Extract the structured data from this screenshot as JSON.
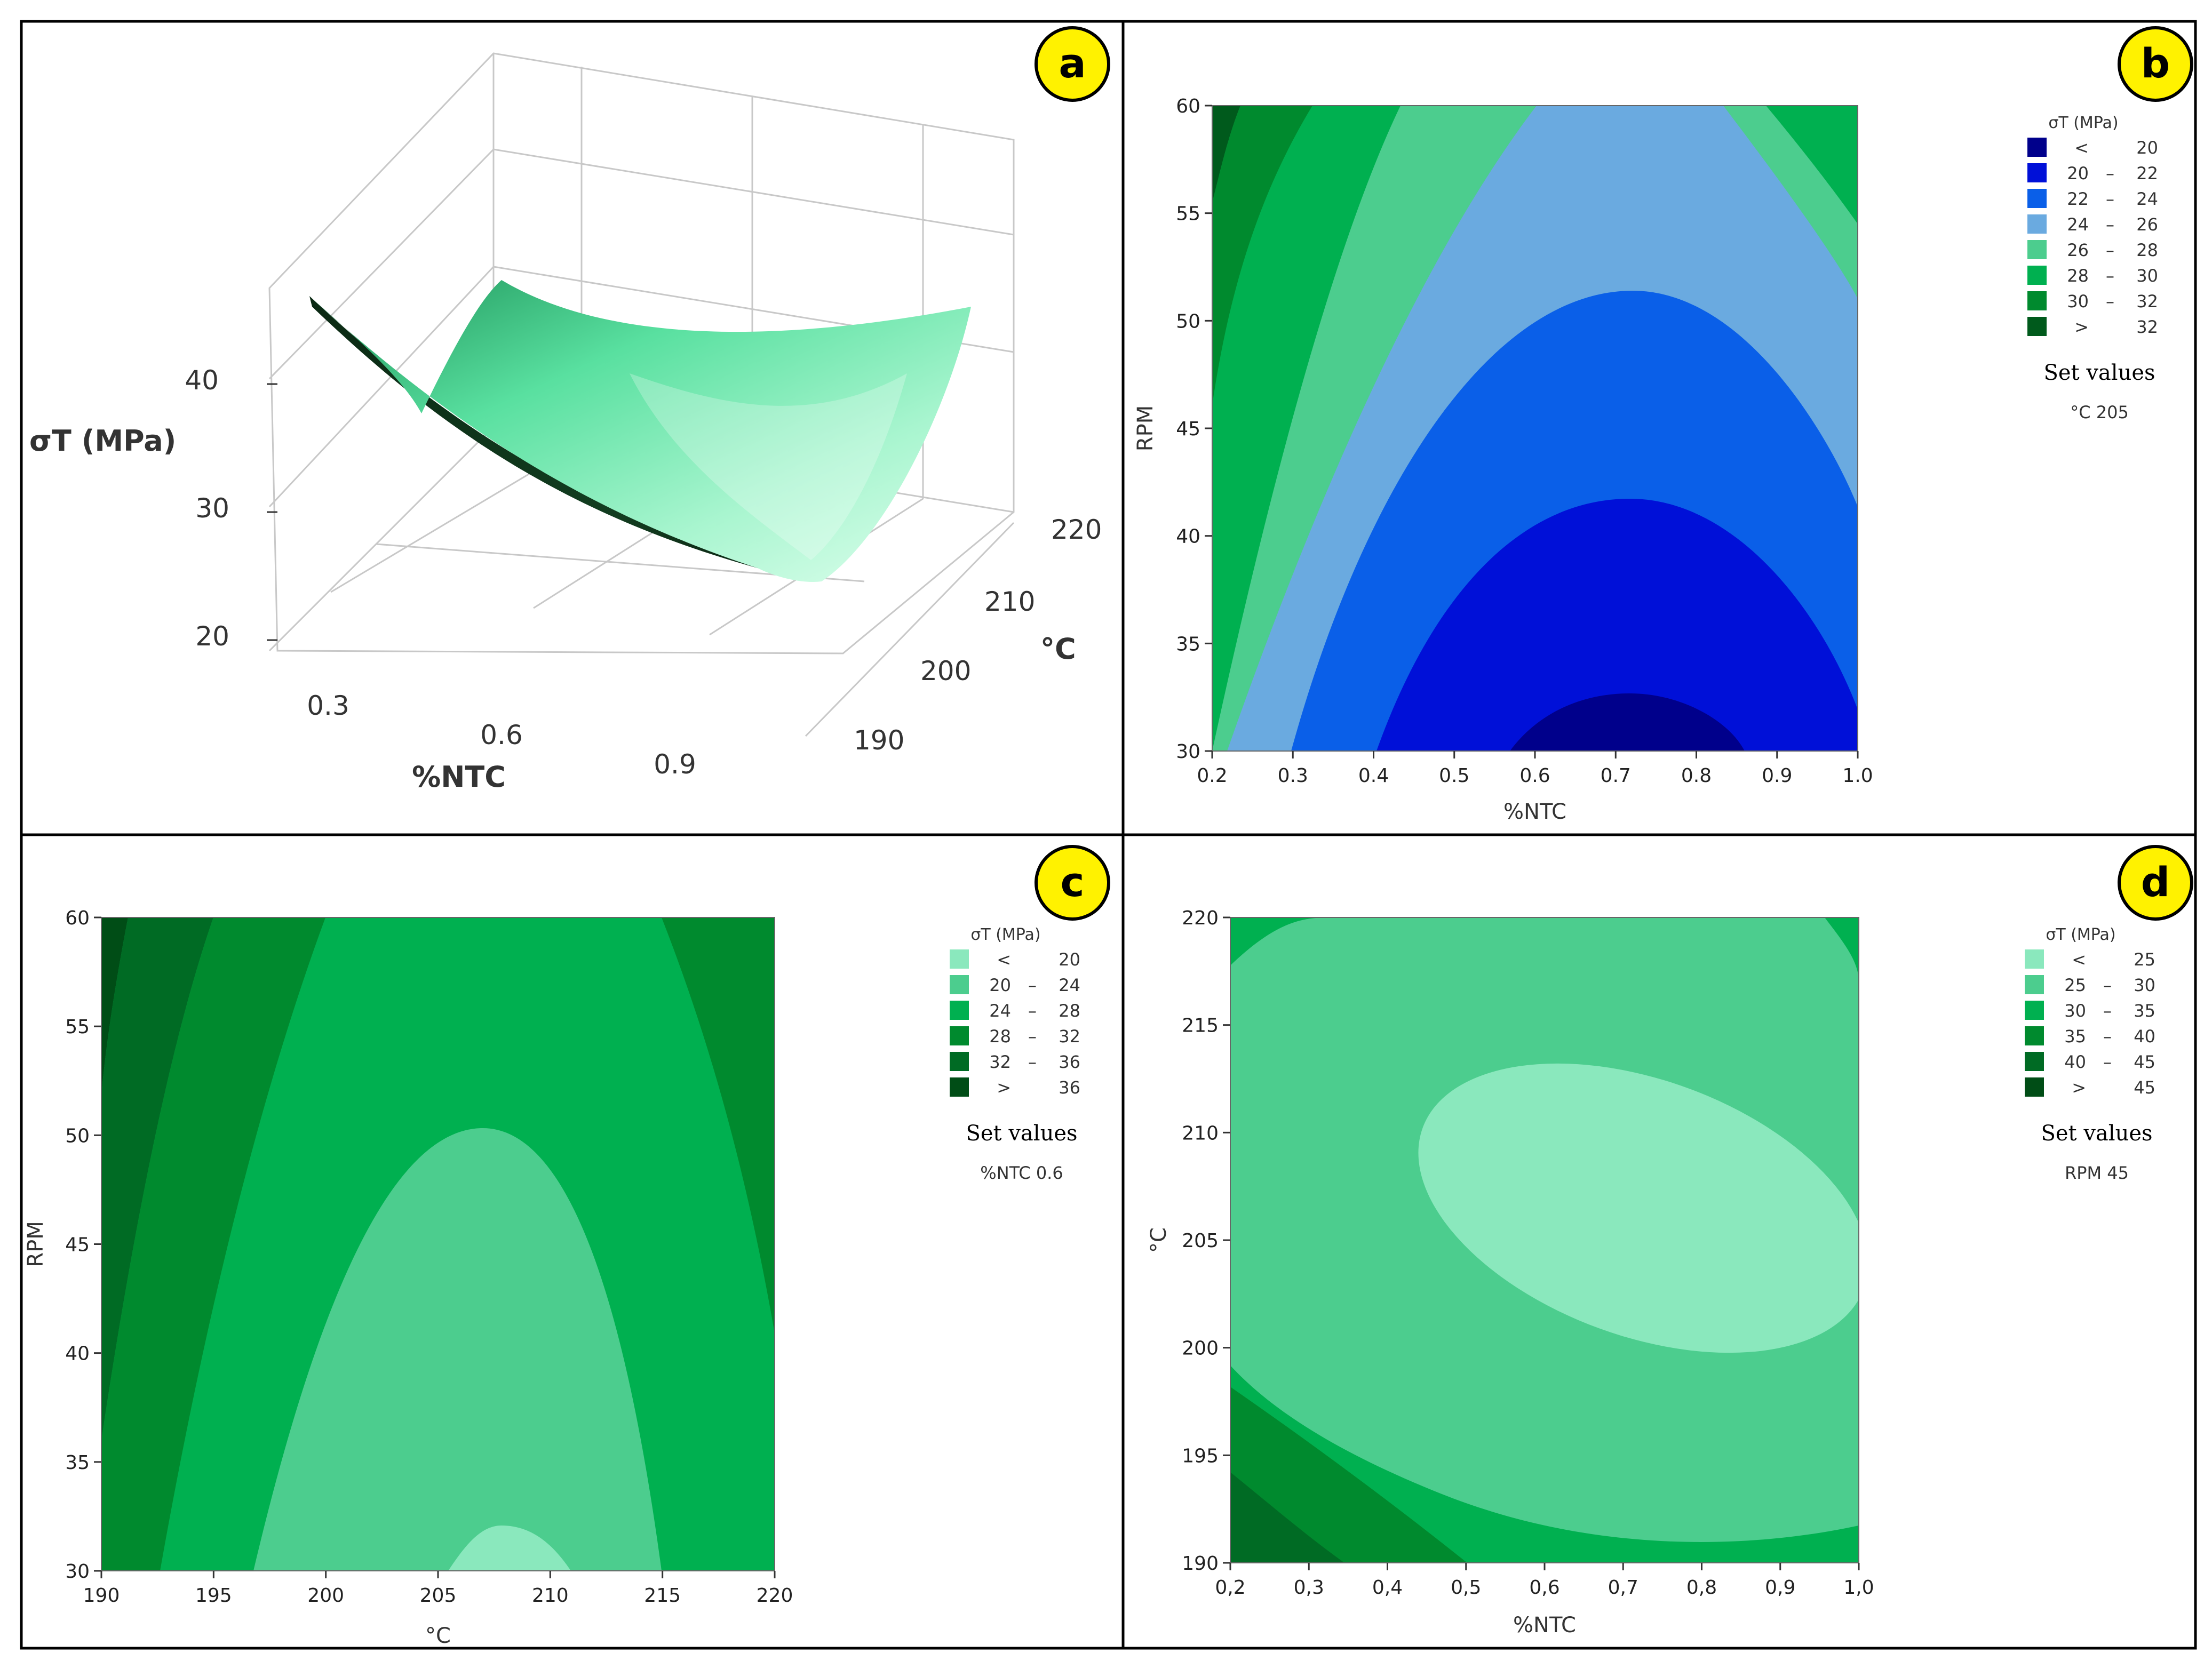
{
  "figure": {
    "panel_labels": [
      "a",
      "b",
      "c",
      "d"
    ]
  },
  "colors": {
    "frame": "#000000",
    "label_fill": "#fff200",
    "blue_scale": [
      "#00008b",
      "#0010d8",
      "#0a5fe8",
      "#6aaae0",
      "#4ccd8e",
      "#00b050",
      "#008a2e",
      "#005a1c"
    ],
    "green_scale_c": [
      "#8ae8bd",
      "#4ccd8e",
      "#00b050",
      "#008a2e",
      "#006b24",
      "#004d16"
    ],
    "green_scale_d": [
      "#8ae8bd",
      "#4ccd8e",
      "#00b050",
      "#008a2e",
      "#006b24",
      "#004d16"
    ]
  },
  "chart_data": [
    {
      "panel": "a",
      "type": "surface",
      "zlabel": "σT (MPa)",
      "xlabel": "%NTC",
      "ylabel": "°C",
      "z_ticks": [
        "20",
        "30",
        "40"
      ],
      "x_ticks": [
        "0.3",
        "0.6",
        "0.9"
      ],
      "y_ticks": [
        "190",
        "200",
        "210",
        "220"
      ],
      "zlim": [
        20,
        45
      ],
      "xlim": [
        0.2,
        1.0
      ],
      "ylim": [
        190,
        220
      ]
    },
    {
      "panel": "b",
      "type": "contour",
      "xlabel": "%NTC",
      "ylabel": "RPM",
      "x_ticks": [
        "0.2",
        "0.3",
        "0.4",
        "0.5",
        "0.6",
        "0.7",
        "0.8",
        "0.9",
        "1.0"
      ],
      "y_ticks": [
        "30",
        "35",
        "40",
        "45",
        "50",
        "55",
        "60"
      ],
      "xlim": [
        0.2,
        1.0
      ],
      "ylim": [
        30,
        60
      ],
      "legend_title": "σT (MPa)",
      "legend": [
        {
          "op": "<",
          "range": "20"
        },
        {
          "op": "20",
          "range": "22"
        },
        {
          "op": "22",
          "range": "24"
        },
        {
          "op": "24",
          "range": "26"
        },
        {
          "op": "26",
          "range": "28"
        },
        {
          "op": "28",
          "range": "30"
        },
        {
          "op": "30",
          "range": "32"
        },
        {
          "op": ">",
          "range": "32"
        }
      ],
      "set_values_title": "Set values",
      "set_values": "°C  205"
    },
    {
      "panel": "c",
      "type": "contour",
      "xlabel": "°C",
      "ylabel": "RPM",
      "x_ticks": [
        "190",
        "195",
        "200",
        "205",
        "210",
        "215",
        "220"
      ],
      "y_ticks": [
        "30",
        "35",
        "40",
        "45",
        "50",
        "55",
        "60"
      ],
      "xlim": [
        190,
        220
      ],
      "ylim": [
        30,
        60
      ],
      "legend_title": "σT (MPa)",
      "legend": [
        {
          "op": "<",
          "range": "20"
        },
        {
          "op": "20",
          "range": "24"
        },
        {
          "op": "24",
          "range": "28"
        },
        {
          "op": "28",
          "range": "32"
        },
        {
          "op": "32",
          "range": "36"
        },
        {
          "op": ">",
          "range": "36"
        }
      ],
      "set_values_title": "Set values",
      "set_values": "%NTC   0.6"
    },
    {
      "panel": "d",
      "type": "contour",
      "xlabel": "%NTC",
      "ylabel": "°C",
      "x_ticks": [
        "0,2",
        "0,3",
        "0,4",
        "0,5",
        "0,6",
        "0,7",
        "0,8",
        "0,9",
        "1,0"
      ],
      "y_ticks": [
        "190",
        "195",
        "200",
        "205",
        "210",
        "215",
        "220"
      ],
      "xlim": [
        0.2,
        1.0
      ],
      "ylim": [
        190,
        220
      ],
      "legend_title": "σT (MPa)",
      "legend": [
        {
          "op": "<",
          "range": "25"
        },
        {
          "op": "25",
          "range": "30"
        },
        {
          "op": "30",
          "range": "35"
        },
        {
          "op": "35",
          "range": "40"
        },
        {
          "op": "40",
          "range": "45"
        },
        {
          "op": ">",
          "range": "45"
        }
      ],
      "set_values_title": "Set values",
      "set_values": "RPM   45"
    }
  ]
}
